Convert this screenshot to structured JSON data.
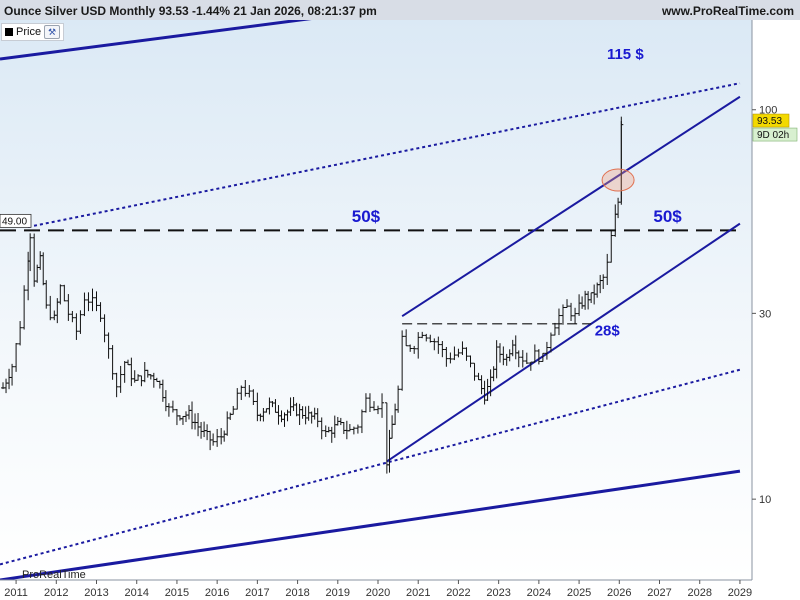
{
  "header": {
    "title": "Ounce Silver USD Monthly 93.53 -1.44% 21 Jan 2026, 08:21:37 pm",
    "site": "www.ProRealTime.com"
  },
  "legend": {
    "label": "Price",
    "icon": "wrench-icon"
  },
  "watermark": "ProRealTime",
  "colors": {
    "background": "#eaf3fa",
    "candles": "#111111",
    "trendlines": "#1a1aa0",
    "annotation_text": "#1a1ad0",
    "price_badge": "#f3d900",
    "countdown_badge": "#d8f0d0",
    "highlight_circle": "#f4a080"
  },
  "chart_data": {
    "type": "candlestick",
    "title": "Ounce Silver USD Monthly",
    "y_scale": "log",
    "ylim": [
      6.2,
      170
    ],
    "xlim": [
      2010.6,
      2029.3
    ],
    "x_ticks": [
      "2011",
      "2012",
      "2013",
      "2014",
      "2015",
      "2016",
      "2017",
      "2018",
      "2019",
      "2020",
      "2021",
      "2022",
      "2023",
      "2024",
      "2025",
      "2026",
      "2027",
      "2028",
      "2029"
    ],
    "y_ticks": [
      10,
      30,
      100
    ],
    "last_price": "93.53",
    "countdown": "9D 02h",
    "level_label": "49.00",
    "annotations": [
      "115 $",
      "50$",
      "50$",
      "28$"
    ],
    "price_path": [
      [
        2010.6,
        18.5
      ],
      [
        2010.9,
        22
      ],
      [
        2011.1,
        28
      ],
      [
        2011.3,
        42
      ],
      [
        2011.35,
        48
      ],
      [
        2011.45,
        37
      ],
      [
        2011.6,
        41
      ],
      [
        2011.75,
        31
      ],
      [
        2011.95,
        29
      ],
      [
        2012.1,
        35
      ],
      [
        2012.3,
        30
      ],
      [
        2012.5,
        27
      ],
      [
        2012.7,
        33
      ],
      [
        2012.9,
        32
      ],
      [
        2013.1,
        30
      ],
      [
        2013.3,
        24
      ],
      [
        2013.5,
        19.5
      ],
      [
        2013.7,
        22.5
      ],
      [
        2013.95,
        20
      ],
      [
        2014.2,
        21
      ],
      [
        2014.5,
        20.5
      ],
      [
        2014.8,
        17
      ],
      [
        2015.0,
        16.5
      ],
      [
        2015.3,
        16.5
      ],
      [
        2015.6,
        15
      ],
      [
        2015.9,
        14
      ],
      [
        2016.1,
        14.5
      ],
      [
        2016.4,
        17
      ],
      [
        2016.6,
        19.5
      ],
      [
        2016.8,
        18.5
      ],
      [
        2017.0,
        16.5
      ],
      [
        2017.3,
        17.5
      ],
      [
        2017.6,
        16.5
      ],
      [
        2017.9,
        17
      ],
      [
        2018.2,
        16.5
      ],
      [
        2018.5,
        16
      ],
      [
        2018.7,
        14.7
      ],
      [
        2019.0,
        15.5
      ],
      [
        2019.3,
        15
      ],
      [
        2019.5,
        15.5
      ],
      [
        2019.7,
        18
      ],
      [
        2019.9,
        17.5
      ],
      [
        2020.1,
        17.5
      ],
      [
        2020.22,
        12.5
      ],
      [
        2020.35,
        15.5
      ],
      [
        2020.5,
        19
      ],
      [
        2020.6,
        25.5
      ],
      [
        2020.7,
        24.5
      ],
      [
        2020.9,
        25
      ],
      [
        2021.1,
        27
      ],
      [
        2021.3,
        26
      ],
      [
        2021.5,
        25
      ],
      [
        2021.7,
        23
      ],
      [
        2021.9,
        23.5
      ],
      [
        2022.1,
        24
      ],
      [
        2022.3,
        22
      ],
      [
        2022.5,
        20
      ],
      [
        2022.65,
        18.5
      ],
      [
        2022.8,
        20
      ],
      [
        2022.95,
        24
      ],
      [
        2023.2,
        23
      ],
      [
        2023.35,
        25.5
      ],
      [
        2023.5,
        23.5
      ],
      [
        2023.7,
        22.5
      ],
      [
        2023.9,
        23.5
      ],
      [
        2024.1,
        23
      ],
      [
        2024.3,
        27
      ],
      [
        2024.5,
        29.5
      ],
      [
        2024.7,
        31
      ],
      [
        2024.9,
        29.5
      ],
      [
        2025.0,
        31
      ],
      [
        2025.15,
        33
      ],
      [
        2025.3,
        33
      ],
      [
        2025.45,
        35
      ],
      [
        2025.6,
        37
      ],
      [
        2025.7,
        40
      ],
      [
        2025.8,
        47
      ],
      [
        2025.9,
        53
      ],
      [
        2025.97,
        58
      ],
      [
        2026.05,
        93.53
      ]
    ],
    "lines": [
      {
        "name": "upper-solid",
        "style": "solid",
        "x": [
          2010.6,
          2019.0
        ],
        "y": [
          135,
          175
        ]
      },
      {
        "name": "upper-dotted",
        "style": "dotted",
        "x": [
          2011.3,
          2029.0
        ],
        "y": [
          50,
          117
        ]
      },
      {
        "name": "level-50",
        "style": "dashed",
        "x": [
          2010.6,
          2029.0
        ],
        "y": [
          49,
          49
        ]
      },
      {
        "name": "channel-top",
        "style": "solid",
        "x": [
          2020.6,
          2029.0
        ],
        "y": [
          29.5,
          108
        ]
      },
      {
        "name": "channel-bottom",
        "style": "solid",
        "x": [
          2020.22,
          2029.0
        ],
        "y": [
          12.5,
          51
        ]
      },
      {
        "name": "level-28",
        "style": "dashed",
        "x": [
          2020.6,
          2025.3
        ],
        "y": [
          28.2,
          28.2
        ]
      },
      {
        "name": "lower-dotted",
        "style": "dotted",
        "x": [
          2010.6,
          2029.0
        ],
        "y": [
          6.8,
          21.5
        ]
      },
      {
        "name": "lower-solid",
        "style": "solid",
        "x": [
          2010.6,
          2029.0
        ],
        "y": [
          6.2,
          11.8
        ]
      }
    ]
  }
}
